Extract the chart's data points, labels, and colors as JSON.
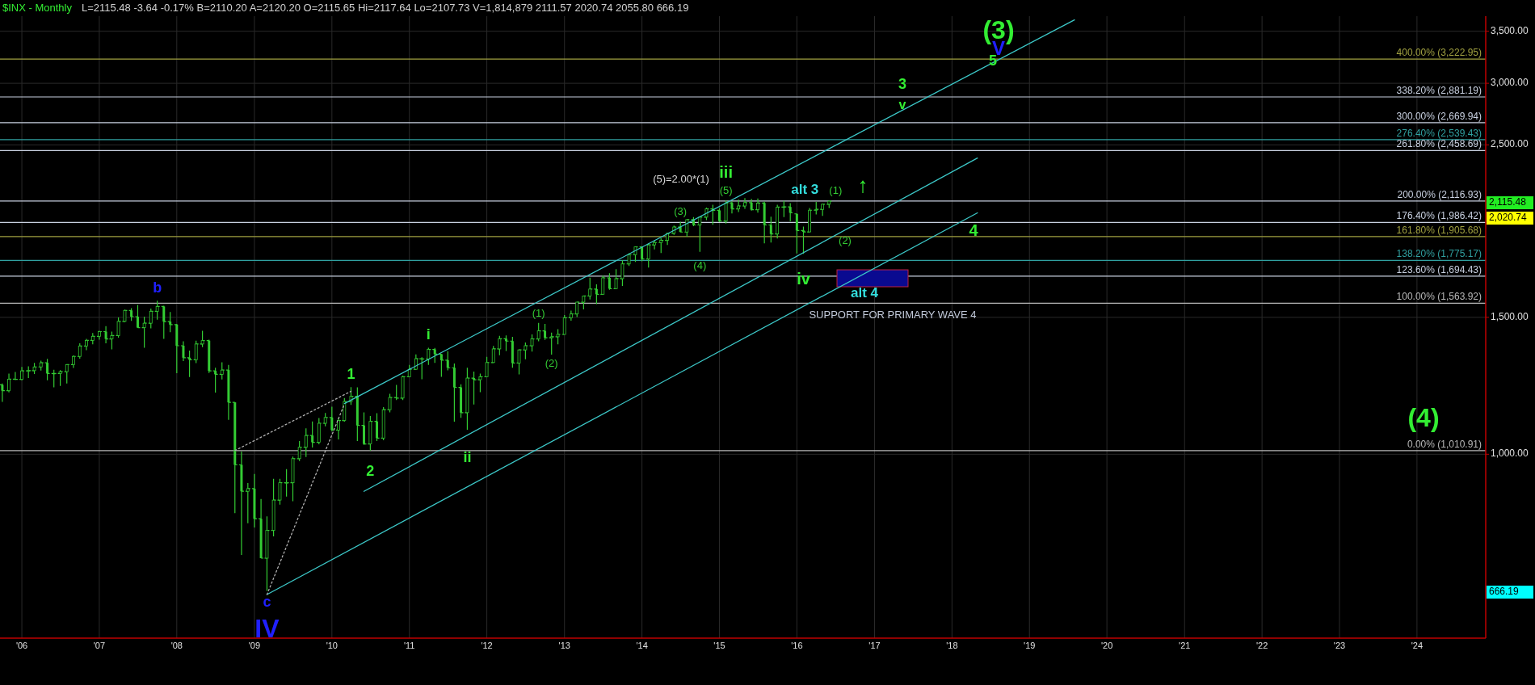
{
  "chart_data": {
    "type": "candlestick",
    "title": "$INX - Monthly",
    "subtitle": "L=2115.48 -3.64 -0.17% B=2110.20 A=2120.20 O=2115.65 Hi=2117.64 Lo=2107.73 V=1,814,879 2111.57 2020.74 2055.80 666.19",
    "color": "#33cc33",
    "x": [
      "2005-10",
      "2005-11",
      "2005-12",
      "2006-01",
      "2006-02",
      "2006-03",
      "2006-04",
      "2006-05",
      "2006-06",
      "2006-07",
      "2006-08",
      "2006-09",
      "2006-10",
      "2006-11",
      "2006-12",
      "2007-01",
      "2007-02",
      "2007-03",
      "2007-04",
      "2007-05",
      "2007-06",
      "2007-07",
      "2007-08",
      "2007-09",
      "2007-10",
      "2007-11",
      "2007-12",
      "2008-01",
      "2008-02",
      "2008-03",
      "2008-04",
      "2008-05",
      "2008-06",
      "2008-07",
      "2008-08",
      "2008-09",
      "2008-10",
      "2008-11",
      "2008-12",
      "2009-01",
      "2009-02",
      "2009-03",
      "2009-04",
      "2009-05",
      "2009-06",
      "2009-07",
      "2009-08",
      "2009-09",
      "2009-10",
      "2009-11",
      "2009-12",
      "2010-01",
      "2010-02",
      "2010-03",
      "2010-04",
      "2010-05",
      "2010-06",
      "2010-07",
      "2010-08",
      "2010-09",
      "2010-10",
      "2010-11",
      "2010-12",
      "2011-01",
      "2011-02",
      "2011-03",
      "2011-04",
      "2011-05",
      "2011-06",
      "2011-07",
      "2011-08",
      "2011-09",
      "2011-10",
      "2011-11",
      "2011-12",
      "2012-01",
      "2012-02",
      "2012-03",
      "2012-04",
      "2012-05",
      "2012-06",
      "2012-07",
      "2012-08",
      "2012-09",
      "2012-10",
      "2012-11",
      "2012-12",
      "2013-01",
      "2013-02",
      "2013-03",
      "2013-04",
      "2013-05",
      "2013-06",
      "2013-07",
      "2013-08",
      "2013-09",
      "2013-10",
      "2013-11",
      "2013-12",
      "2014-01",
      "2014-02",
      "2014-03",
      "2014-04",
      "2014-05",
      "2014-06",
      "2014-07",
      "2014-08",
      "2014-09",
      "2014-10",
      "2014-11",
      "2014-12",
      "2015-01",
      "2015-02",
      "2015-03",
      "2015-04",
      "2015-05",
      "2015-06",
      "2015-07",
      "2015-08",
      "2015-09",
      "2015-10",
      "2015-11",
      "2015-12",
      "2016-01",
      "2016-02",
      "2016-03",
      "2016-04",
      "2016-05",
      "2016-06"
    ],
    "ohlc": [
      [
        1228,
        1233,
        1168,
        1207
      ],
      [
        1207,
        1270,
        1201,
        1249
      ],
      [
        1249,
        1276,
        1246,
        1248
      ],
      [
        1248,
        1295,
        1245,
        1280
      ],
      [
        1280,
        1297,
        1253,
        1281
      ],
      [
        1281,
        1311,
        1268,
        1295
      ],
      [
        1295,
        1319,
        1281,
        1311
      ],
      [
        1311,
        1326,
        1245,
        1270
      ],
      [
        1270,
        1284,
        1219,
        1270
      ],
      [
        1270,
        1283,
        1224,
        1277
      ],
      [
        1277,
        1306,
        1233,
        1304
      ],
      [
        1304,
        1340,
        1291,
        1336
      ],
      [
        1336,
        1389,
        1327,
        1378
      ],
      [
        1378,
        1407,
        1361,
        1401
      ],
      [
        1401,
        1432,
        1385,
        1418
      ],
      [
        1418,
        1441,
        1404,
        1438
      ],
      [
        1438,
        1461,
        1389,
        1407
      ],
      [
        1407,
        1438,
        1364,
        1421
      ],
      [
        1421,
        1499,
        1412,
        1482
      ],
      [
        1482,
        1535,
        1479,
        1531
      ],
      [
        1531,
        1541,
        1484,
        1503
      ],
      [
        1503,
        1556,
        1454,
        1455
      ],
      [
        1455,
        1503,
        1371,
        1474
      ],
      [
        1474,
        1539,
        1452,
        1527
      ],
      [
        1527,
        1576,
        1490,
        1549
      ],
      [
        1549,
        1552,
        1407,
        1481
      ],
      [
        1481,
        1524,
        1435,
        1468
      ],
      [
        1468,
        1471,
        1271,
        1379
      ],
      [
        1379,
        1397,
        1318,
        1331
      ],
      [
        1331,
        1359,
        1257,
        1323
      ],
      [
        1323,
        1400,
        1310,
        1386
      ],
      [
        1386,
        1441,
        1373,
        1400
      ],
      [
        1400,
        1404,
        1272,
        1280
      ],
      [
        1280,
        1292,
        1200,
        1267
      ],
      [
        1267,
        1313,
        1248,
        1283
      ],
      [
        1283,
        1303,
        1107,
        1166
      ],
      [
        1166,
        1167,
        840,
        969
      ],
      [
        969,
        1008,
        742,
        896
      ],
      [
        896,
        918,
        815,
        903
      ],
      [
        903,
        943,
        805,
        826
      ],
      [
        826,
        876,
        735,
        735
      ],
      [
        735,
        832,
        667,
        798
      ],
      [
        798,
        930,
        784,
        873
      ],
      [
        873,
        930,
        861,
        919
      ],
      [
        919,
        957,
        882,
        919
      ],
      [
        919,
        993,
        870,
        987
      ],
      [
        987,
        1040,
        980,
        1021
      ],
      [
        1021,
        1080,
        992,
        1057
      ],
      [
        1057,
        1102,
        1020,
        1036
      ],
      [
        1036,
        1113,
        1030,
        1096
      ],
      [
        1096,
        1130,
        1086,
        1115
      ],
      [
        1115,
        1151,
        1071,
        1074
      ],
      [
        1074,
        1113,
        1045,
        1105
      ],
      [
        1105,
        1181,
        1101,
        1169
      ],
      [
        1169,
        1220,
        1157,
        1187
      ],
      [
        1187,
        1219,
        1040,
        1089
      ],
      [
        1089,
        1132,
        1028,
        1031
      ],
      [
        1031,
        1120,
        1011,
        1102
      ],
      [
        1102,
        1129,
        1040,
        1049
      ],
      [
        1049,
        1150,
        1042,
        1141
      ],
      [
        1141,
        1196,
        1132,
        1183
      ],
      [
        1183,
        1228,
        1174,
        1181
      ],
      [
        1181,
        1262,
        1174,
        1258
      ],
      [
        1258,
        1303,
        1257,
        1286
      ],
      [
        1286,
        1344,
        1284,
        1327
      ],
      [
        1327,
        1333,
        1249,
        1326
      ],
      [
        1326,
        1371,
        1303,
        1364
      ],
      [
        1364,
        1370,
        1311,
        1345
      ],
      [
        1345,
        1345,
        1258,
        1321
      ],
      [
        1321,
        1357,
        1282,
        1292
      ],
      [
        1292,
        1308,
        1101,
        1219
      ],
      [
        1219,
        1230,
        1114,
        1131
      ],
      [
        1131,
        1292,
        1075,
        1253
      ],
      [
        1253,
        1277,
        1159,
        1247
      ],
      [
        1247,
        1270,
        1202,
        1258
      ],
      [
        1258,
        1334,
        1258,
        1312
      ],
      [
        1312,
        1378,
        1311,
        1366
      ],
      [
        1366,
        1420,
        1341,
        1408
      ],
      [
        1408,
        1422,
        1358,
        1398
      ],
      [
        1398,
        1416,
        1292,
        1310
      ],
      [
        1310,
        1364,
        1267,
        1362
      ],
      [
        1362,
        1392,
        1325,
        1379
      ],
      [
        1379,
        1426,
        1355,
        1407
      ],
      [
        1407,
        1475,
        1397,
        1441
      ],
      [
        1441,
        1471,
        1403,
        1412
      ],
      [
        1412,
        1434,
        1343,
        1416
      ],
      [
        1416,
        1448,
        1385,
        1426
      ],
      [
        1426,
        1510,
        1426,
        1498
      ],
      [
        1498,
        1530,
        1485,
        1515
      ],
      [
        1515,
        1570,
        1501,
        1569
      ],
      [
        1569,
        1598,
        1536,
        1598
      ],
      [
        1598,
        1687,
        1581,
        1631
      ],
      [
        1631,
        1654,
        1560,
        1606
      ],
      [
        1606,
        1698,
        1605,
        1686
      ],
      [
        1686,
        1709,
        1627,
        1633
      ],
      [
        1633,
        1730,
        1633,
        1682
      ],
      [
        1682,
        1776,
        1646,
        1757
      ],
      [
        1757,
        1813,
        1746,
        1806
      ],
      [
        1806,
        1849,
        1767,
        1848
      ],
      [
        1848,
        1850,
        1771,
        1783
      ],
      [
        1783,
        1867,
        1738,
        1859
      ],
      [
        1859,
        1884,
        1834,
        1872
      ],
      [
        1872,
        1897,
        1815,
        1884
      ],
      [
        1884,
        1924,
        1859,
        1924
      ],
      [
        1924,
        1968,
        1915,
        1960
      ],
      [
        1960,
        1991,
        1931,
        1931
      ],
      [
        1931,
        2005,
        1905,
        2003
      ],
      [
        2003,
        2019,
        1965,
        1972
      ],
      [
        1972,
        2019,
        1821,
        2018
      ],
      [
        2018,
        2076,
        2001,
        2068
      ],
      [
        2068,
        2093,
        1973,
        2059
      ],
      [
        2059,
        2072,
        1988,
        1995
      ],
      [
        1995,
        2120,
        1980,
        2105
      ],
      [
        2105,
        2115,
        2040,
        2068
      ],
      [
        2068,
        2126,
        2049,
        2086
      ],
      [
        2086,
        2135,
        2068,
        2107
      ],
      [
        2107,
        2130,
        2057,
        2063
      ],
      [
        2063,
        2133,
        2045,
        2104
      ],
      [
        2104,
        2113,
        1867,
        1972
      ],
      [
        1972,
        2021,
        1872,
        1920
      ],
      [
        1920,
        2094,
        1894,
        2079
      ],
      [
        2079,
        2117,
        2019,
        2080
      ],
      [
        2080,
        2104,
        1993,
        2044
      ],
      [
        2038,
        2039,
        1812,
        1940
      ],
      [
        1940,
        1963,
        1810,
        1932
      ],
      [
        1932,
        2073,
        1932,
        2060
      ],
      [
        2060,
        2111,
        2034,
        2065
      ],
      [
        2065,
        2100,
        2026,
        2097
      ],
      [
        2097,
        2120,
        2074,
        2115.48
      ]
    ],
    "series": [
      {
        "type": "line",
        "x": [
          "2010-03",
          "2019-08"
        ],
        "values": [
          1162,
          3620
        ],
        "color": "#3cc8c8",
        "line_style": "solid"
      },
      {
        "type": "line",
        "x": [
          "2010-06",
          "2018-05"
        ],
        "values": [
          896,
          2404
        ],
        "color": "#3cc8c8",
        "line_style": "solid"
      },
      {
        "type": "line",
        "x": [
          "2009-03",
          "2018-05"
        ],
        "values": [
          660,
          2044
        ],
        "color": "#3cc8c8",
        "line_style": "solid"
      },
      {
        "type": "line",
        "x": [
          "2008-10",
          "2010-04"
        ],
        "values": [
          1010.91,
          1205
        ],
        "color": "#b0b0b0",
        "line_style": "dotted"
      },
      {
        "type": "line",
        "x": [
          "2009-03",
          "2010-03"
        ],
        "values": [
          660,
          1160
        ],
        "color": "#b0b0b0",
        "line_style": "dotted"
      }
    ],
    "xlim": [
      "2005-09-20",
      "2024-11-20"
    ],
    "xticks": [
      {
        "value": "2006",
        "label": "'06"
      },
      {
        "value": "2007",
        "label": "'07"
      },
      {
        "value": "2008",
        "label": "'08"
      },
      {
        "value": "2009",
        "label": "'09"
      },
      {
        "value": "2010",
        "label": "'10"
      },
      {
        "value": "2011",
        "label": "'11"
      },
      {
        "value": "2012",
        "label": "'12"
      },
      {
        "value": "2013",
        "label": "'13"
      },
      {
        "value": "2014",
        "label": "'14"
      },
      {
        "value": "2015",
        "label": "'15"
      },
      {
        "value": "2016",
        "label": "'16"
      },
      {
        "value": "2017",
        "label": "'17"
      },
      {
        "value": "2018",
        "label": "'18"
      },
      {
        "value": "2019",
        "label": "'19"
      },
      {
        "value": "2020",
        "label": "'20"
      },
      {
        "value": "2021",
        "label": "'21"
      },
      {
        "value": "2022",
        "label": "'22"
      },
      {
        "value": "2023",
        "label": "'23"
      },
      {
        "value": "2024",
        "label": "'24"
      }
    ],
    "ylim": [
      580,
      3660
    ],
    "log": true,
    "grid": true,
    "yticks": [
      {
        "value": 1000,
        "label": "1,000.00"
      },
      {
        "value": 1500,
        "label": "1,500.00"
      },
      {
        "value": 2500,
        "label": "2,500.00"
      },
      {
        "value": 3000,
        "label": "3,000.00"
      },
      {
        "value": 3500,
        "label": "3,500.00"
      }
    ],
    "ref_lines": [
      {
        "axis": "y",
        "value": 3222.95,
        "label": "400.00% (3,222.95)",
        "color": "#a0a040"
      },
      {
        "axis": "y",
        "value": 2881.19,
        "label": "338.20% (2,881.19)",
        "color": "#c8d0e0"
      },
      {
        "axis": "y",
        "value": 2669.94,
        "label": "300.00% (2,669.94)",
        "color": "#c8d0e0"
      },
      {
        "axis": "y",
        "value": 2539.43,
        "label": "276.40% (2,539.43)",
        "color": "#30a0a0"
      },
      {
        "axis": "y",
        "value": 2458.69,
        "label": "261.80% (2,458.69)",
        "color": "#c8d0e0"
      },
      {
        "axis": "y",
        "value": 2116.93,
        "label": "200.00% (2,116.93)",
        "color": "#c8d0e0"
      },
      {
        "axis": "y",
        "value": 1986.42,
        "label": "176.40% (1,986.42)",
        "color": "#c8d0e0"
      },
      {
        "axis": "y",
        "value": 1905.68,
        "label": "161.80% (1,905.68)",
        "color": "#a0a040"
      },
      {
        "axis": "y",
        "value": 1775.17,
        "label": "138.20% (1,775.17)",
        "color": "#30a0a0"
      },
      {
        "axis": "y",
        "value": 1694.43,
        "label": "123.60% (1,694.43)",
        "color": "#c8d0e0"
      },
      {
        "axis": "y",
        "value": 1563.92,
        "label": "100.00% (1,563.92)",
        "color": "#b8b8b8"
      },
      {
        "axis": "y",
        "value": 1010.91,
        "label": "0.00% (1,010.91)",
        "color": "#b8b8b8"
      }
    ],
    "annotations": [
      {
        "text": "b",
        "x": "2007-10",
        "y": 1576
      },
      {
        "text": "c",
        "x": "2009-03",
        "y": 667
      },
      {
        "text": "IV",
        "x": "2009-03",
        "y": 667
      },
      {
        "text": "1",
        "x": "2010-04",
        "y": 1220
      },
      {
        "text": "2",
        "x": "2010-07",
        "y": 1011
      },
      {
        "text": "i",
        "x": "2011-04",
        "y": 1371
      },
      {
        "text": "ii",
        "x": "2011-10",
        "y": 1075
      },
      {
        "text": "(1)",
        "x": "2012-09",
        "y": 1475
      },
      {
        "text": "(2)",
        "x": "2012-11",
        "y": 1343
      },
      {
        "text": "(3)",
        "x": "2014-07",
        "y": 1991
      },
      {
        "text": "(4)",
        "x": "2014-10",
        "y": 1821
      },
      {
        "text": "(5)",
        "x": "2015-02",
        "y": 2120
      },
      {
        "text": "iii",
        "x": "2015-02",
        "y": 2120
      },
      {
        "text": "alt 3",
        "x": "2016-04",
        "y": 2111
      },
      {
        "text": "(1)",
        "x": "2016-06",
        "y": 2120
      },
      {
        "text": "iv",
        "x": "2016-02",
        "y": 1810
      },
      "(5)=2.00*(1)",
      "(2)",
      "alt 4",
      "SUPPORT FOR PRIMARY WAVE 4",
      "↑",
      "4",
      "3",
      "v",
      "(3)",
      "V",
      "5",
      "(4)",
      "2,115.48",
      "2,020.74",
      "666.19"
    ]
  }
}
